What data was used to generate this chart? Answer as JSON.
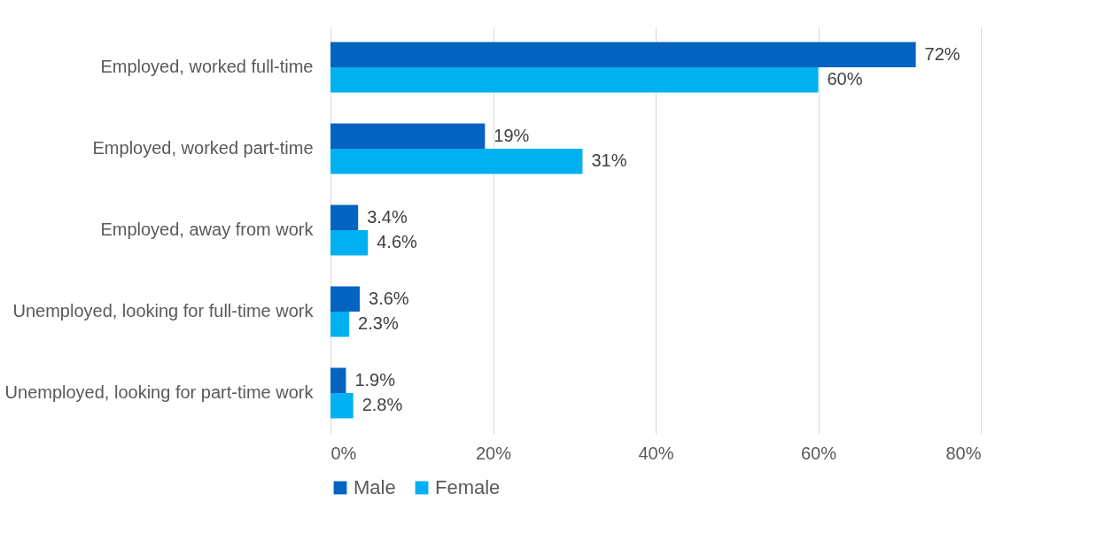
{
  "chart_data": {
    "type": "bar",
    "orientation": "horizontal",
    "categories": [
      "Employed, worked full-time",
      "Employed, worked part-time",
      "Employed, away from work",
      "Unemployed, looking for full-time work",
      "Unemployed, looking for part-time work"
    ],
    "series": [
      {
        "name": "Male",
        "color": "#0563c1",
        "values": [
          72,
          19,
          3.4,
          3.6,
          1.9
        ],
        "value_labels": [
          "72%",
          "19%",
          "3.4%",
          "3.6%",
          "1.9%"
        ]
      },
      {
        "name": "Female",
        "color": "#00b0f0",
        "values": [
          60,
          31,
          4.6,
          2.3,
          2.8
        ],
        "value_labels": [
          "60%",
          "31%",
          "4.6%",
          "2.3%",
          "2.8%"
        ]
      }
    ],
    "xlim": [
      0,
      80
    ],
    "xticks": [
      {
        "value": 0,
        "label": "0%"
      },
      {
        "value": 20,
        "label": "20%"
      },
      {
        "value": 40,
        "label": "40%"
      },
      {
        "value": 60,
        "label": "60%"
      },
      {
        "value": 80,
        "label": "80%"
      }
    ],
    "grid": "x",
    "legend": "bottom"
  }
}
